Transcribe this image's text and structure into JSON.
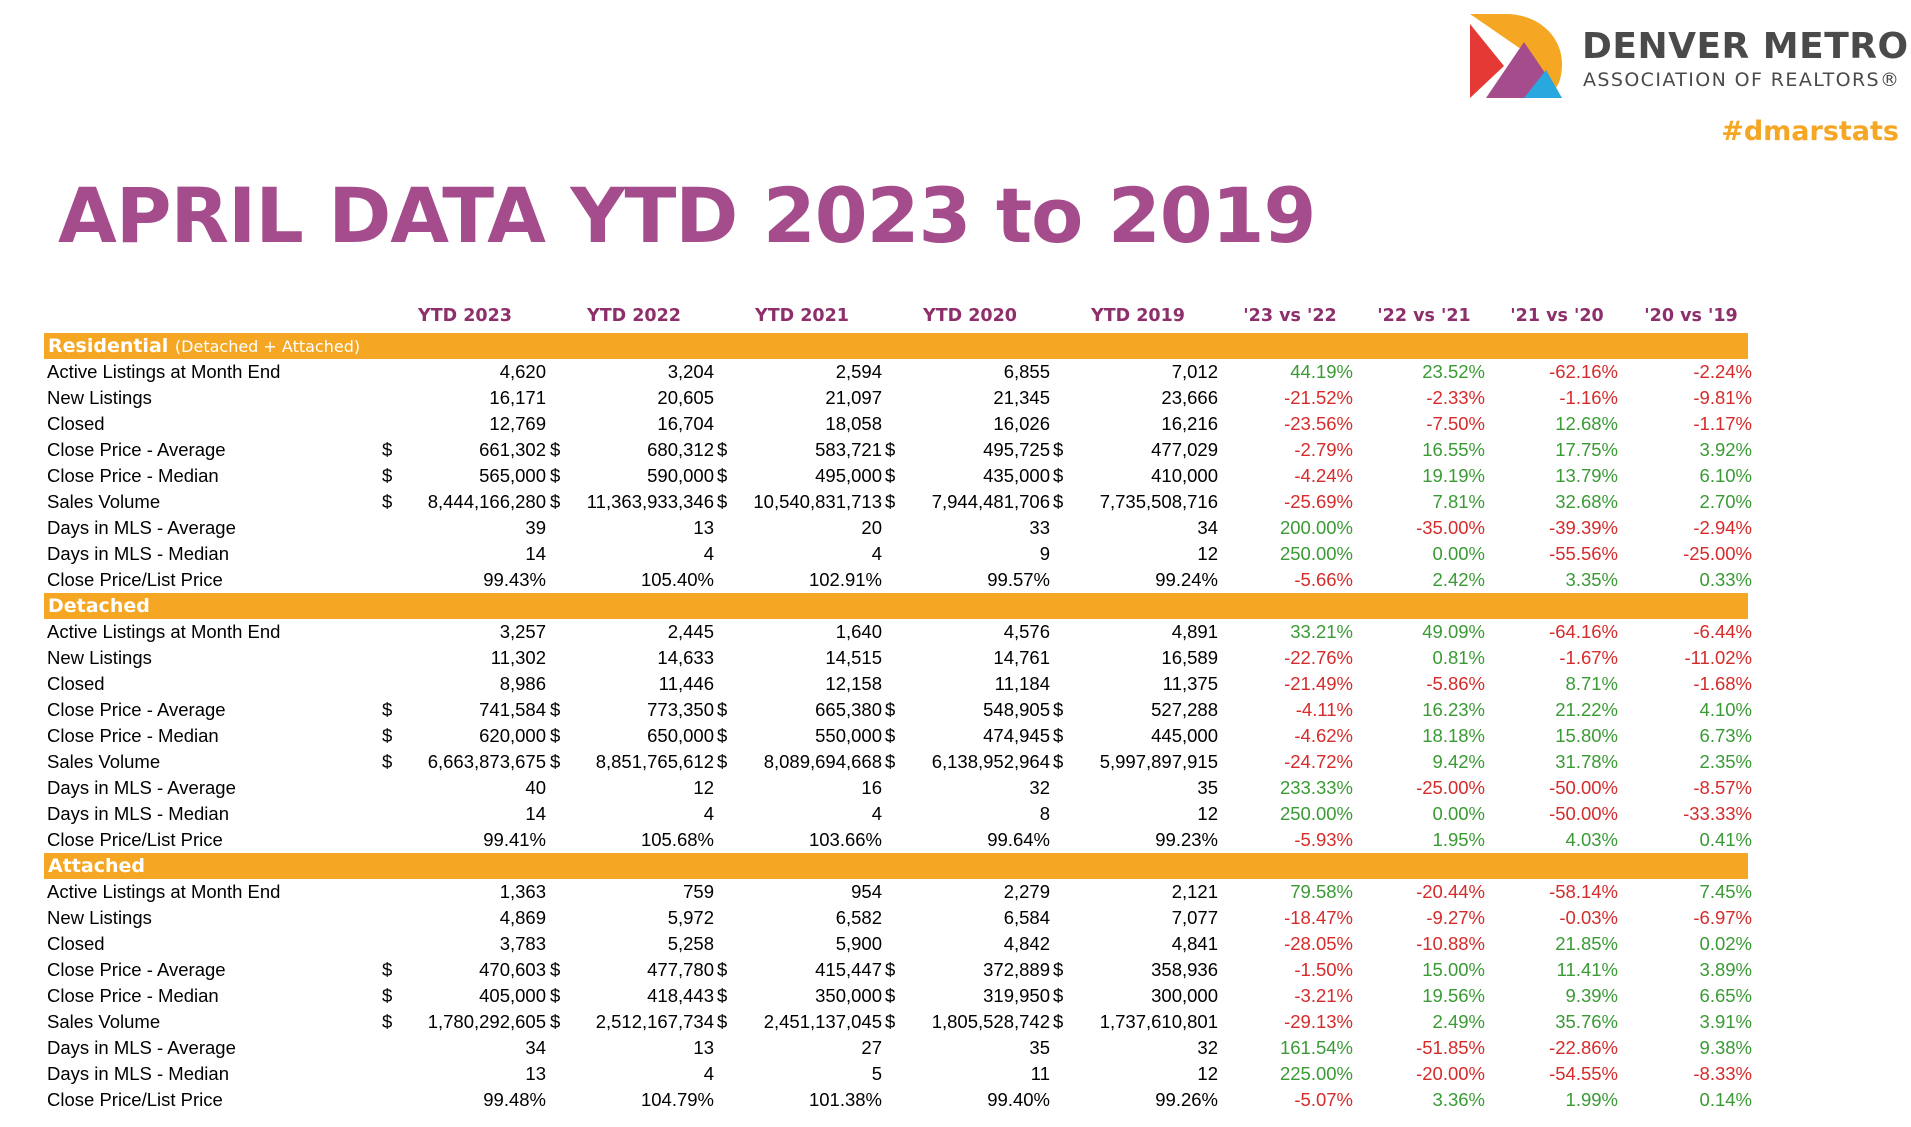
{
  "brand": {
    "name_line1": "DENVER METRO",
    "name_line2": "ASSOCIATION OF REALTORS®",
    "hashtag": "#dmarstats",
    "colors": {
      "purple": "#a44c8c",
      "orange": "#f5a623",
      "red": "#e53935",
      "blue": "#29a8df",
      "dark_purple": "#8c2f6b"
    }
  },
  "title": "APRIL DATA YTD 2023 to 2019",
  "columns": [
    "YTD 2023",
    "YTD 2022",
    "YTD 2021",
    "YTD 2020",
    "YTD 2019",
    "'23 vs '22",
    "'22 vs '21",
    "'21 vs '20",
    "'20 vs '19"
  ],
  "sections": [
    {
      "name": "Residential",
      "subtitle": "(Detached + Attached)",
      "rows": [
        {
          "label": "Active Listings at Month End",
          "dollar": false,
          "values": [
            "4,620",
            "3,204",
            "2,594",
            "6,855",
            "7,012"
          ],
          "changes": [
            "44.19%",
            "23.52%",
            "-62.16%",
            "-2.24%"
          ]
        },
        {
          "label": "New Listings",
          "dollar": false,
          "values": [
            "16,171",
            "20,605",
            "21,097",
            "21,345",
            "23,666"
          ],
          "changes": [
            "-21.52%",
            "-2.33%",
            "-1.16%",
            "-9.81%"
          ]
        },
        {
          "label": "Closed",
          "dollar": false,
          "values": [
            "12,769",
            "16,704",
            "18,058",
            "16,026",
            "16,216"
          ],
          "changes": [
            "-23.56%",
            "-7.50%",
            "12.68%",
            "-1.17%"
          ]
        },
        {
          "label": "Close Price - Average",
          "dollar": true,
          "values": [
            "661,302",
            "680,312",
            "583,721",
            "495,725",
            "477,029"
          ],
          "changes": [
            "-2.79%",
            "16.55%",
            "17.75%",
            "3.92%"
          ]
        },
        {
          "label": "Close Price - Median",
          "dollar": true,
          "values": [
            "565,000",
            "590,000",
            "495,000",
            "435,000",
            "410,000"
          ],
          "changes": [
            "-4.24%",
            "19.19%",
            "13.79%",
            "6.10%"
          ]
        },
        {
          "label": "Sales Volume",
          "dollar": true,
          "values": [
            "8,444,166,280",
            "11,363,933,346",
            "10,540,831,713",
            "7,944,481,706",
            "7,735,508,716"
          ],
          "changes": [
            "-25.69%",
            "7.81%",
            "32.68%",
            "2.70%"
          ]
        },
        {
          "label": "Days in MLS - Average",
          "dollar": false,
          "values": [
            "39",
            "13",
            "20",
            "33",
            "34"
          ],
          "changes": [
            "200.00%",
            "-35.00%",
            "-39.39%",
            "-2.94%"
          ]
        },
        {
          "label": "Days in MLS - Median",
          "dollar": false,
          "values": [
            "14",
            "4",
            "4",
            "9",
            "12"
          ],
          "changes": [
            "250.00%",
            "0.00%",
            "-55.56%",
            "-25.00%"
          ]
        },
        {
          "label": "Close Price/List Price",
          "dollar": false,
          "values": [
            "99.43%",
            "105.40%",
            "102.91%",
            "99.57%",
            "99.24%"
          ],
          "changes": [
            "-5.66%",
            "2.42%",
            "3.35%",
            "0.33%"
          ]
        }
      ]
    },
    {
      "name": "Detached",
      "subtitle": "",
      "rows": [
        {
          "label": "Active Listings at Month End",
          "dollar": false,
          "values": [
            "3,257",
            "2,445",
            "1,640",
            "4,576",
            "4,891"
          ],
          "changes": [
            "33.21%",
            "49.09%",
            "-64.16%",
            "-6.44%"
          ]
        },
        {
          "label": "New Listings",
          "dollar": false,
          "values": [
            "11,302",
            "14,633",
            "14,515",
            "14,761",
            "16,589"
          ],
          "changes": [
            "-22.76%",
            "0.81%",
            "-1.67%",
            "-11.02%"
          ]
        },
        {
          "label": "Closed",
          "dollar": false,
          "values": [
            "8,986",
            "11,446",
            "12,158",
            "11,184",
            "11,375"
          ],
          "changes": [
            "-21.49%",
            "-5.86%",
            "8.71%",
            "-1.68%"
          ]
        },
        {
          "label": "Close Price - Average",
          "dollar": true,
          "values": [
            "741,584",
            "773,350",
            "665,380",
            "548,905",
            "527,288"
          ],
          "changes": [
            "-4.11%",
            "16.23%",
            "21.22%",
            "4.10%"
          ]
        },
        {
          "label": "Close Price - Median",
          "dollar": true,
          "values": [
            "620,000",
            "650,000",
            "550,000",
            "474,945",
            "445,000"
          ],
          "changes": [
            "-4.62%",
            "18.18%",
            "15.80%",
            "6.73%"
          ]
        },
        {
          "label": "Sales Volume",
          "dollar": true,
          "values": [
            "6,663,873,675",
            "8,851,765,612",
            "8,089,694,668",
            "6,138,952,964",
            "5,997,897,915"
          ],
          "changes": [
            "-24.72%",
            "9.42%",
            "31.78%",
            "2.35%"
          ]
        },
        {
          "label": "Days in MLS - Average",
          "dollar": false,
          "values": [
            "40",
            "12",
            "16",
            "32",
            "35"
          ],
          "changes": [
            "233.33%",
            "-25.00%",
            "-50.00%",
            "-8.57%"
          ]
        },
        {
          "label": "Days in MLS - Median",
          "dollar": false,
          "values": [
            "14",
            "4",
            "4",
            "8",
            "12"
          ],
          "changes": [
            "250.00%",
            "0.00%",
            "-50.00%",
            "-33.33%"
          ]
        },
        {
          "label": "Close Price/List Price",
          "dollar": false,
          "values": [
            "99.41%",
            "105.68%",
            "103.66%",
            "99.64%",
            "99.23%"
          ],
          "changes": [
            "-5.93%",
            "1.95%",
            "4.03%",
            "0.41%"
          ]
        }
      ]
    },
    {
      "name": "Attached",
      "subtitle": "",
      "rows": [
        {
          "label": "Active Listings at Month End",
          "dollar": false,
          "values": [
            "1,363",
            "759",
            "954",
            "2,279",
            "2,121"
          ],
          "changes": [
            "79.58%",
            "-20.44%",
            "-58.14%",
            "7.45%"
          ]
        },
        {
          "label": "New Listings",
          "dollar": false,
          "values": [
            "4,869",
            "5,972",
            "6,582",
            "6,584",
            "7,077"
          ],
          "changes": [
            "-18.47%",
            "-9.27%",
            "-0.03%",
            "-6.97%"
          ]
        },
        {
          "label": "Closed",
          "dollar": false,
          "values": [
            "3,783",
            "5,258",
            "5,900",
            "4,842",
            "4,841"
          ],
          "changes": [
            "-28.05%",
            "-10.88%",
            "21.85%",
            "0.02%"
          ]
        },
        {
          "label": "Close Price - Average",
          "dollar": true,
          "values": [
            "470,603",
            "477,780",
            "415,447",
            "372,889",
            "358,936"
          ],
          "changes": [
            "-1.50%",
            "15.00%",
            "11.41%",
            "3.89%"
          ]
        },
        {
          "label": "Close Price - Median",
          "dollar": true,
          "values": [
            "405,000",
            "418,443",
            "350,000",
            "319,950",
            "300,000"
          ],
          "changes": [
            "-3.21%",
            "19.56%",
            "9.39%",
            "6.65%"
          ]
        },
        {
          "label": "Sales Volume",
          "dollar": true,
          "values": [
            "1,780,292,605",
            "2,512,167,734",
            "2,451,137,045",
            "1,805,528,742",
            "1,737,610,801"
          ],
          "changes": [
            "-29.13%",
            "2.49%",
            "35.76%",
            "3.91%"
          ]
        },
        {
          "label": "Days in MLS - Average",
          "dollar": false,
          "values": [
            "34",
            "13",
            "27",
            "35",
            "32"
          ],
          "changes": [
            "161.54%",
            "-51.85%",
            "-22.86%",
            "9.38%"
          ]
        },
        {
          "label": "Days in MLS - Median",
          "dollar": false,
          "values": [
            "13",
            "4",
            "5",
            "11",
            "12"
          ],
          "changes": [
            "225.00%",
            "-20.00%",
            "-54.55%",
            "-8.33%"
          ]
        },
        {
          "label": "Close Price/List Price",
          "dollar": false,
          "values": [
            "99.48%",
            "104.79%",
            "101.38%",
            "99.40%",
            "99.26%"
          ],
          "changes": [
            "-5.07%",
            "3.36%",
            "1.99%",
            "0.14%"
          ]
        }
      ]
    }
  ]
}
